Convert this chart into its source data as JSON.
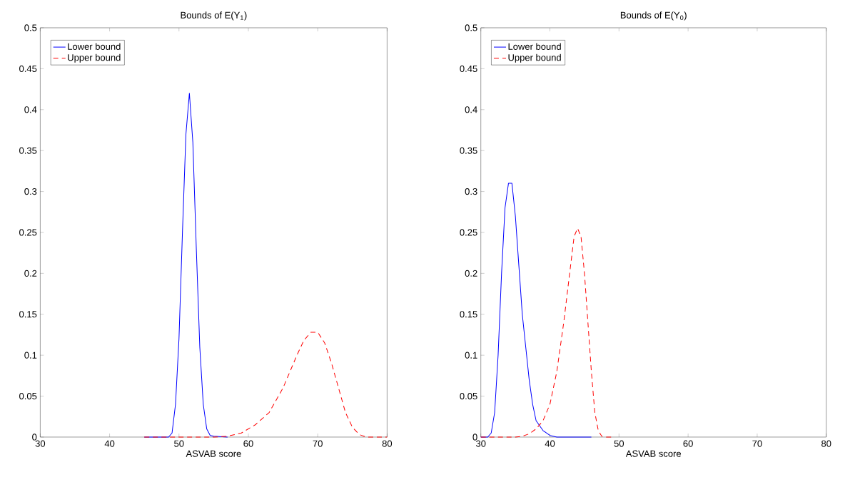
{
  "chart_data": [
    {
      "type": "line",
      "title": "Bounds of E(Y$_{1}$)",
      "xlabel": "ASVAB score",
      "xlim": [
        30,
        80
      ],
      "ylim": [
        0,
        0.5
      ],
      "xticks": [
        30,
        40,
        50,
        60,
        70,
        80
      ],
      "yticks": [
        0,
        0.05,
        0.1,
        0.15,
        0.2,
        0.25,
        0.3,
        0.35,
        0.4,
        0.45,
        0.5
      ],
      "grid": false,
      "legend": "top left",
      "marker": "none",
      "series": [
        {
          "name": "Lower bound",
          "color": "#0000ff",
          "line_style": "solid",
          "x": [
            45,
            48.5,
            49,
            49.5,
            50,
            50.5,
            51,
            51.5,
            52,
            52.5,
            53,
            53.5,
            54,
            54.5,
            55,
            57
          ],
          "values": [
            0,
            0,
            0.005,
            0.04,
            0.12,
            0.25,
            0.37,
            0.42,
            0.36,
            0.23,
            0.11,
            0.04,
            0.01,
            0.002,
            0.001,
            0
          ]
        },
        {
          "name": "Upper bound",
          "color": "#ff0000",
          "line_style": "dashed",
          "x": [
            45,
            55,
            57,
            59,
            61,
            63,
            64,
            65,
            66,
            67,
            68,
            69,
            70,
            71,
            72,
            73,
            74,
            75,
            76,
            77,
            80
          ],
          "values": [
            0,
            0,
            0.001,
            0.005,
            0.015,
            0.03,
            0.045,
            0.06,
            0.08,
            0.1,
            0.118,
            0.128,
            0.128,
            0.115,
            0.09,
            0.06,
            0.03,
            0.012,
            0.003,
            0,
            0
          ]
        }
      ]
    },
    {
      "type": "line",
      "title": "Bounds of E(Y$_{0}$)",
      "xlabel": "ASVAB score",
      "xlim": [
        30,
        80
      ],
      "ylim": [
        0,
        0.5
      ],
      "xticks": [
        30,
        40,
        50,
        60,
        70,
        80
      ],
      "yticks": [
        0,
        0.05,
        0.1,
        0.15,
        0.2,
        0.25,
        0.3,
        0.35,
        0.4,
        0.45,
        0.5
      ],
      "grid": false,
      "legend": "top left",
      "marker": "none",
      "series": [
        {
          "name": "Lower bound",
          "color": "#0000ff",
          "line_style": "solid",
          "x": [
            30,
            31,
            31.5,
            32,
            32.5,
            33,
            33.5,
            34,
            34.5,
            35,
            35.5,
            36,
            36.5,
            37,
            37.5,
            38,
            39,
            40,
            41,
            46
          ],
          "values": [
            0,
            0,
            0.005,
            0.03,
            0.1,
            0.2,
            0.28,
            0.31,
            0.31,
            0.27,
            0.21,
            0.15,
            0.11,
            0.07,
            0.04,
            0.02,
            0.008,
            0.002,
            0,
            0
          ]
        },
        {
          "name": "Upper bound",
          "color": "#ff0000",
          "line_style": "dashed",
          "x": [
            30,
            35,
            36,
            37,
            38,
            39,
            40,
            41,
            42,
            43,
            43.5,
            44,
            44.5,
            45,
            45.5,
            46,
            46.5,
            47,
            47.5,
            48,
            49
          ],
          "values": [
            0,
            0,
            0.001,
            0.004,
            0.01,
            0.02,
            0.04,
            0.08,
            0.14,
            0.21,
            0.245,
            0.255,
            0.245,
            0.2,
            0.14,
            0.08,
            0.03,
            0.008,
            0.001,
            0,
            0
          ]
        }
      ]
    }
  ]
}
